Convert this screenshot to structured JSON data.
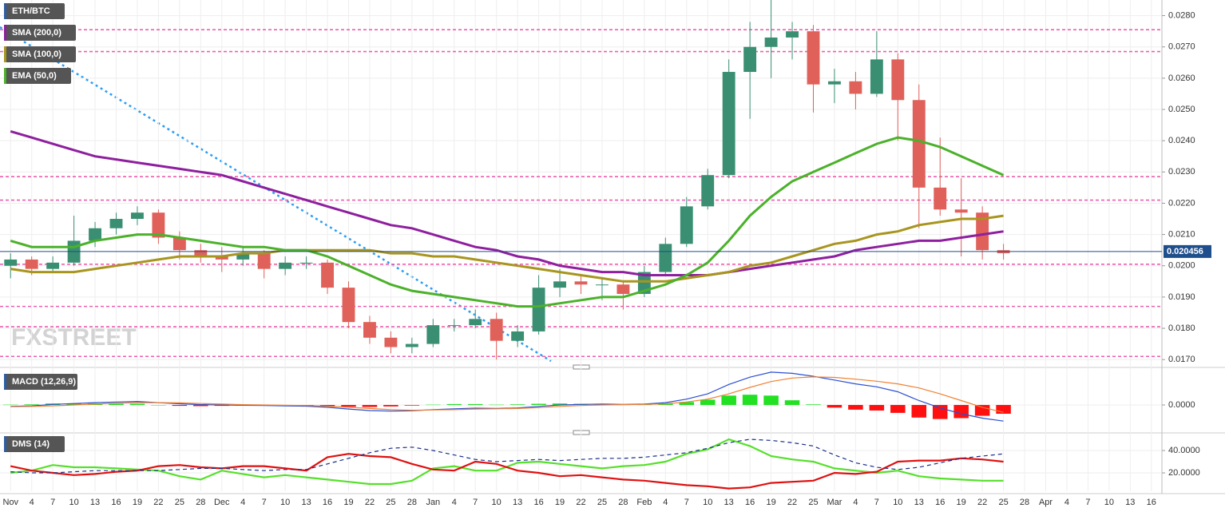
{
  "chart_data": [
    {
      "type": "candlestick",
      "title": "ETH/BTC",
      "watermark": "FXSTREET",
      "categories": [
        "Nov",
        "4",
        "7",
        "10",
        "13",
        "16",
        "19",
        "22",
        "25",
        "28",
        "Dec",
        "4",
        "7",
        "10",
        "13",
        "16",
        "19",
        "22",
        "25",
        "28",
        "Jan",
        "4",
        "7",
        "10",
        "13",
        "16",
        "19",
        "22",
        "25",
        "28",
        "Feb",
        "4",
        "7",
        "10",
        "13",
        "16",
        "19",
        "22",
        "25",
        "Mar",
        "4",
        "7",
        "10",
        "13",
        "16",
        "19",
        "22",
        "25",
        "28",
        "Apr",
        "4",
        "7",
        "10",
        "13",
        "16"
      ],
      "open": [
        0.02,
        0.0202,
        0.0199,
        0.0201,
        0.0208,
        0.0212,
        0.0215,
        0.0217,
        0.0209,
        0.0205,
        0.0203,
        0.0202,
        0.0204,
        0.0199,
        0.0201,
        0.0201,
        0.0193,
        0.0182,
        0.0177,
        0.0174,
        0.0175,
        0.0181,
        0.0181,
        0.0183,
        0.0176,
        0.0179,
        0.0193,
        0.0195,
        0.0194,
        0.0194,
        0.0191,
        0.0198,
        0.0207,
        0.0219,
        0.0229,
        0.0262,
        0.027,
        0.0273,
        0.0275,
        0.0258,
        0.0259,
        0.0255,
        0.0266,
        0.0253,
        0.0225,
        0.0218,
        0.0217,
        0.0205,
        null,
        null,
        null,
        null,
        null,
        null,
        null
      ],
      "high": [
        0.0204,
        0.0203,
        0.0203,
        0.0216,
        0.0214,
        0.0217,
        0.0219,
        0.0218,
        0.0211,
        0.0207,
        0.0206,
        0.0206,
        0.0205,
        0.0203,
        0.0203,
        0.0202,
        0.0195,
        0.0184,
        0.0179,
        0.0177,
        0.0183,
        0.0183,
        0.0186,
        0.0185,
        0.0181,
        0.0197,
        0.0199,
        0.0197,
        0.0196,
        0.0195,
        0.02,
        0.0209,
        0.0222,
        0.0231,
        0.0266,
        0.0278,
        0.0285,
        0.0278,
        0.0277,
        0.0263,
        0.0262,
        0.0275,
        0.0268,
        0.0258,
        0.0241,
        0.0228,
        0.0219,
        0.0207,
        null,
        null,
        null,
        null,
        null,
        null,
        null
      ],
      "low": [
        0.0196,
        0.0197,
        0.0198,
        0.02,
        0.0206,
        0.021,
        0.0213,
        0.0207,
        0.0202,
        0.0201,
        0.0198,
        0.02,
        0.0196,
        0.0197,
        0.0199,
        0.0191,
        0.018,
        0.0175,
        0.0172,
        0.0172,
        0.0174,
        0.0179,
        0.018,
        0.017,
        0.0174,
        0.0178,
        0.019,
        0.0191,
        0.0189,
        0.0186,
        0.019,
        0.0197,
        0.0206,
        0.0218,
        0.0228,
        0.0247,
        0.026,
        0.0266,
        0.0249,
        0.0252,
        0.025,
        0.0254,
        0.024,
        0.0212,
        0.0216,
        0.0203,
        0.0202,
        0.0202,
        null,
        null,
        null,
        null,
        null,
        null,
        null
      ],
      "close": [
        0.0202,
        0.0199,
        0.0201,
        0.0208,
        0.0212,
        0.0215,
        0.0217,
        0.0209,
        0.0205,
        0.0203,
        0.0202,
        0.0204,
        0.0199,
        0.0201,
        0.0201,
        0.0193,
        0.0182,
        0.0177,
        0.0174,
        0.0175,
        0.0181,
        0.0181,
        0.0183,
        0.0176,
        0.0179,
        0.0193,
        0.0195,
        0.0194,
        0.0194,
        0.0191,
        0.0198,
        0.0207,
        0.0219,
        0.0229,
        0.0262,
        0.027,
        0.0273,
        0.0275,
        0.0258,
        0.0259,
        0.0255,
        0.0266,
        0.0253,
        0.0225,
        0.0218,
        0.0217,
        0.0205,
        0.0204,
        null,
        null,
        null,
        null,
        null,
        null,
        null
      ],
      "up_color": "#3a8f72",
      "down_color": "#e0605a",
      "series": [
        {
          "name": "SMA (200,0)",
          "color": "#8e1f9e",
          "values": [
            0.0243,
            0.0241,
            0.0239,
            0.0237,
            0.0235,
            0.0234,
            0.0233,
            0.0232,
            0.0231,
            0.023,
            0.0229,
            0.0227,
            0.0225,
            0.0223,
            0.0221,
            0.0219,
            0.0217,
            0.0215,
            0.0213,
            0.0212,
            0.021,
            0.0208,
            0.0206,
            0.0205,
            0.0203,
            0.0202,
            0.02,
            0.0199,
            0.0198,
            0.0198,
            0.0197,
            0.0197,
            0.0197,
            0.0197,
            0.0198,
            0.0199,
            0.02,
            0.0201,
            0.0202,
            0.0203,
            0.0205,
            0.0206,
            0.0207,
            0.0208,
            0.0208,
            0.0209,
            0.021,
            0.0211,
            null,
            null,
            null,
            null,
            null,
            null,
            null
          ]
        },
        {
          "name": "SMA (100,0)",
          "color": "#a8951e",
          "values": [
            0.0199,
            0.0198,
            0.0198,
            0.0198,
            0.0199,
            0.02,
            0.0201,
            0.0202,
            0.0203,
            0.0203,
            0.0203,
            0.0204,
            0.0204,
            0.0205,
            0.0205,
            0.0205,
            0.0205,
            0.0205,
            0.0204,
            0.0204,
            0.0203,
            0.0203,
            0.0202,
            0.0201,
            0.02,
            0.0199,
            0.0198,
            0.0197,
            0.0196,
            0.0195,
            0.0195,
            0.0195,
            0.0196,
            0.0197,
            0.0198,
            0.02,
            0.0201,
            0.0203,
            0.0205,
            0.0207,
            0.0208,
            0.021,
            0.0211,
            0.0213,
            0.0214,
            0.0215,
            0.0215,
            0.0216,
            null,
            null,
            null,
            null,
            null,
            null,
            null
          ]
        },
        {
          "name": "EMA (50,0)",
          "color": "#4bb12a",
          "values": [
            0.0208,
            0.0206,
            0.0206,
            0.0206,
            0.0208,
            0.0209,
            0.021,
            0.021,
            0.0209,
            0.0208,
            0.0207,
            0.0206,
            0.0206,
            0.0205,
            0.0205,
            0.0203,
            0.02,
            0.0197,
            0.0194,
            0.0192,
            0.0191,
            0.019,
            0.0189,
            0.0188,
            0.0187,
            0.0187,
            0.0188,
            0.0189,
            0.019,
            0.019,
            0.0192,
            0.0194,
            0.0197,
            0.0201,
            0.0208,
            0.0216,
            0.0222,
            0.0227,
            0.023,
            0.0233,
            0.0236,
            0.0239,
            0.0241,
            0.024,
            0.0238,
            0.0235,
            0.0232,
            0.0229,
            null,
            null,
            null,
            null,
            null,
            null,
            null
          ]
        }
      ],
      "levels": [
        0.02755,
        0.02685,
        0.02285,
        0.0221,
        0.02005,
        0.0187,
        0.01805,
        0.0171
      ],
      "level_color": "#ec5fae",
      "last_price": 0.020456,
      "last_price_color": "#1f4e8c",
      "ylim": [
        0.0168,
        0.0285
      ],
      "yticks": [
        {
          "value": 0.017,
          "label": "0.0170"
        },
        {
          "value": 0.018,
          "label": "0.0180"
        },
        {
          "value": 0.019,
          "label": "0.0190"
        },
        {
          "value": 0.02,
          "label": "0.0200"
        },
        {
          "value": 0.021,
          "label": "0.0210"
        },
        {
          "value": 0.022,
          "label": "0.0220"
        },
        {
          "value": 0.023,
          "label": "0.0230"
        },
        {
          "value": 0.024,
          "label": "0.0240"
        },
        {
          "value": 0.025,
          "label": "0.0250"
        },
        {
          "value": 0.026,
          "label": "0.0260"
        },
        {
          "value": 0.027,
          "label": "0.0270"
        },
        {
          "value": 0.028,
          "label": "0.0280"
        }
      ],
      "grid": true
    },
    {
      "type": "macd",
      "title": "MACD (12,26,9)",
      "histogram": [
        1e-05,
        2e-05,
        5e-05,
        5e-05,
        5e-05,
        4e-05,
        4e-05,
        0,
        -3e-05,
        -4e-05,
        -3e-05,
        -2e-05,
        -2e-05,
        -2e-05,
        -2e-05,
        -4e-05,
        -6e-05,
        -7e-05,
        -5e-05,
        -2e-05,
        1e-05,
        3e-05,
        3e-05,
        1e-05,
        2e-05,
        4e-05,
        5e-05,
        4e-05,
        3e-05,
        1e-05,
        1e-05,
        4e-05,
        0.0001,
        0.00018,
        0.00032,
        0.00035,
        0.00032,
        0.00016,
        2e-05,
        -9e-05,
        -0.00016,
        -0.00019,
        -0.00027,
        -0.00043,
        -0.00048,
        -0.00045,
        -0.00037,
        -0.0003,
        null,
        null,
        null,
        null,
        null,
        null,
        null
      ],
      "up_color": "#22e022",
      "down_color": "#ff1010",
      "series": [
        {
          "color": "#2a4fd0",
          "values": [
            -5e-05,
            -3e-05,
            2e-05,
            5e-05,
            8e-05,
            0.0001,
            0.00012,
            8e-05,
            4e-05,
            1e-05,
            0,
            -1e-05,
            -2e-05,
            -3e-05,
            -4e-05,
            -8e-05,
            -0.00014,
            -0.00019,
            -0.00021,
            -0.0002,
            -0.00016,
            -0.00013,
            -0.00011,
            -0.00012,
            -0.0001,
            -5e-05,
            0,
            2e-05,
            3e-05,
            2e-05,
            3e-05,
            8e-05,
            0.0002,
            0.00038,
            0.0007,
            0.00095,
            0.00112,
            0.00108,
            0.00098,
            0.00085,
            0.00072,
            0.00062,
            0.00045,
            0.00015,
            -0.0001,
            -0.0003,
            -0.00045,
            -0.00055,
            null,
            null,
            null,
            null,
            null,
            null,
            null
          ]
        },
        {
          "color": "#f08030",
          "values": [
            -6e-05,
            -5e-05,
            -3e-05,
            0,
            3e-05,
            6e-05,
            8e-05,
            8e-05,
            7e-05,
            5e-05,
            3e-05,
            1e-05,
            0,
            -1e-05,
            -2e-05,
            -4e-05,
            -8e-05,
            -0.00012,
            -0.00016,
            -0.00018,
            -0.00017,
            -0.00016,
            -0.00014,
            -0.00013,
            -0.00012,
            -9e-05,
            -5e-05,
            -2e-05,
            0,
            1e-05,
            2e-05,
            4e-05,
            0.0001,
            0.0002,
            0.00038,
            0.0006,
            0.0008,
            0.00092,
            0.00096,
            0.00094,
            0.00088,
            0.00081,
            0.00072,
            0.00058,
            0.00038,
            0.00015,
            -8e-05,
            -0.00025,
            null,
            null,
            null,
            null,
            null,
            null,
            null
          ]
        }
      ],
      "ylim": [
        -0.0009,
        0.0012
      ],
      "yticks": [
        {
          "value": 0,
          "label": "0.0000"
        }
      ]
    },
    {
      "type": "line",
      "title": "DMS (14)",
      "series": [
        {
          "color": "#55e02a",
          "values": [
            20,
            22,
            27,
            25,
            25,
            24,
            23,
            22,
            17,
            14,
            22,
            19,
            16,
            18,
            16,
            14,
            12,
            10,
            10,
            13,
            24,
            26,
            22,
            22,
            29,
            30,
            28,
            26,
            24,
            26,
            27,
            30,
            37,
            41,
            50,
            44,
            35,
            32,
            30,
            24,
            22,
            20,
            22,
            17,
            15,
            14,
            13,
            13,
            null,
            null,
            null,
            null,
            null,
            null,
            null
          ]
        },
        {
          "color": "#e01010",
          "values": [
            26,
            22,
            20,
            18,
            19,
            21,
            22,
            26,
            27,
            25,
            24,
            26,
            26,
            24,
            22,
            34,
            37,
            35,
            34,
            28,
            23,
            22,
            30,
            28,
            22,
            20,
            17,
            18,
            16,
            14,
            13,
            11,
            9,
            8,
            6,
            7,
            11,
            12,
            13,
            20,
            19,
            21,
            30,
            31,
            31,
            33,
            32,
            30,
            null,
            null,
            null,
            null,
            null,
            null,
            null
          ]
        },
        {
          "color": "#1a2f8a",
          "style": "dashed",
          "values": [
            21,
            20,
            20,
            21,
            22,
            22,
            22,
            22,
            23,
            24,
            24,
            23,
            22,
            23,
            23,
            28,
            33,
            38,
            42,
            43,
            40,
            36,
            32,
            30,
            31,
            32,
            31,
            32,
            33,
            33,
            34,
            36,
            38,
            42,
            47,
            50,
            49,
            47,
            44,
            36,
            29,
            25,
            23,
            25,
            29,
            33,
            35,
            37,
            null,
            null,
            null,
            null,
            null,
            null,
            null
          ]
        }
      ],
      "ylim": [
        3.6,
        53.6
      ],
      "yticks": [
        {
          "value": 20,
          "label": "20.0000"
        },
        {
          "value": 40,
          "label": "40.0000"
        }
      ]
    }
  ]
}
